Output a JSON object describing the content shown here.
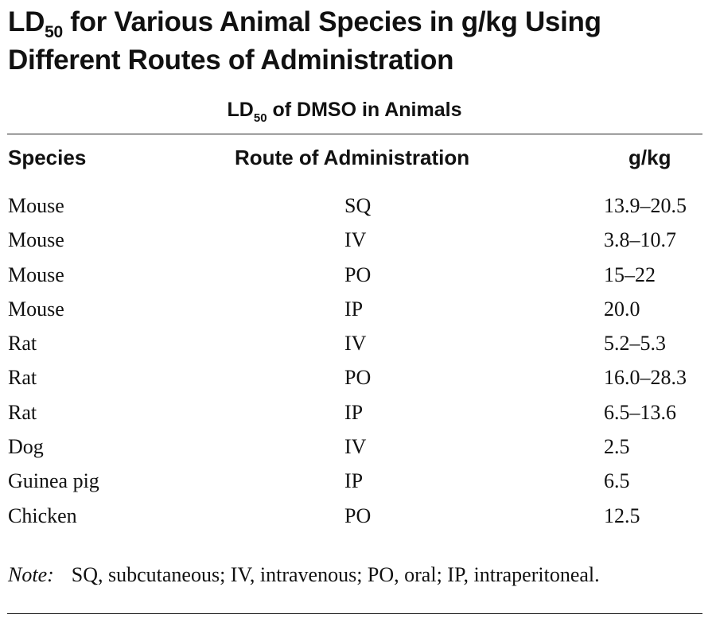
{
  "heading": {
    "prefix": "LD",
    "subscript": "50",
    "line1_rest": " for Various Animal Species in g/kg Using",
    "line2": "Different Routes of Administration"
  },
  "caption": {
    "prefix": "LD",
    "subscript": "50",
    "rest": " of DMSO in Animals"
  },
  "table": {
    "headers": {
      "species": "Species",
      "route": "Route of Administration",
      "value": "g/kg"
    },
    "rows": [
      {
        "species": "Mouse",
        "route": "SQ",
        "value": "13.9–20.5"
      },
      {
        "species": "Mouse",
        "route": "IV",
        "value": "3.8–10.7"
      },
      {
        "species": "Mouse",
        "route": "PO",
        "value": "15–22"
      },
      {
        "species": "Mouse",
        "route": "IP",
        "value": "20.0"
      },
      {
        "species": "Rat",
        "route": "IV",
        "value": "5.2–5.3"
      },
      {
        "species": "Rat",
        "route": "PO",
        "value": "16.0–28.3"
      },
      {
        "species": "Rat",
        "route": "IP",
        "value": "6.5–13.6"
      },
      {
        "species": "Dog",
        "route": "IV",
        "value": "2.5"
      },
      {
        "species": "Guinea pig",
        "route": "IP",
        "value": "6.5"
      },
      {
        "species": "Chicken",
        "route": "PO",
        "value": "12.5"
      }
    ]
  },
  "note": {
    "label": "Note:",
    "text": "SQ, subcutaneous; IV, intravenous; PO, oral; IP, intraperitoneal."
  }
}
